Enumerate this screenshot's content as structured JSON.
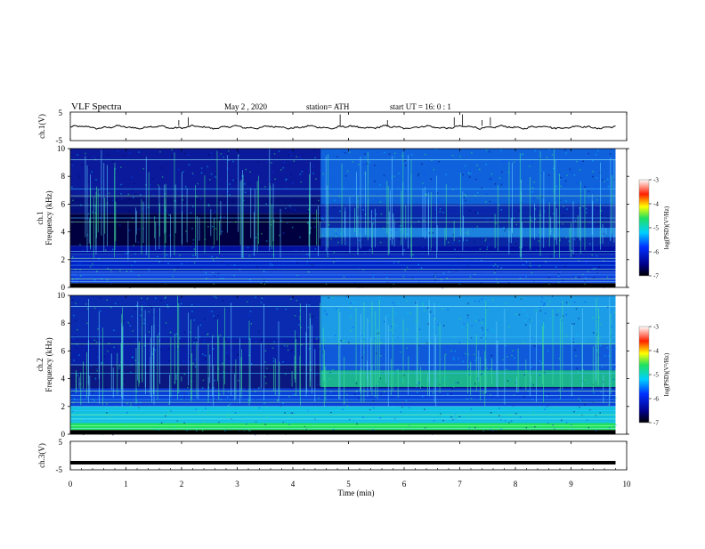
{
  "header": {
    "title": "VLF  Spectra",
    "date": "May 2  , 2020",
    "station": "station= ATH",
    "start_ut": "start  UT  =    16: 0   : 1"
  },
  "chart_data": [
    {
      "id": "ch1",
      "type": "line",
      "ylabel": "ch.1(V)",
      "ylim": [
        -5,
        5
      ],
      "ytick_labels": [
        "5",
        "-5"
      ],
      "xlim": [
        0,
        10
      ],
      "description_free": true,
      "baseline": -0.3,
      "color": "#000000"
    },
    {
      "id": "spec1",
      "type": "heatmap",
      "ylabel_line1": "ch.1",
      "ylabel_line2": "Frequency  (kHz)",
      "ylim": [
        0,
        10
      ],
      "ytick_labels": [
        "0",
        "2",
        "4",
        "6",
        "8",
        "10"
      ],
      "xlim": [
        0,
        10
      ],
      "data_end_min": 9.8,
      "change_min": 4.5,
      "colorbar": {
        "label": "log(PSD)(V²/Hz)",
        "range": [
          -7,
          -3
        ],
        "tick_labels": [
          "-3",
          "-4",
          "-5",
          "-6",
          "-7"
        ]
      }
    },
    {
      "id": "spec2",
      "type": "heatmap",
      "ylabel_line1": "ch.2",
      "ylabel_line2": "Frequency  (kHz)",
      "ylim": [
        0,
        10
      ],
      "ytick_labels": [
        "0",
        "2",
        "4",
        "6",
        "8",
        "10"
      ],
      "xlim": [
        0,
        10
      ],
      "data_end_min": 9.8,
      "change_min": 4.5,
      "colorbar": {
        "label": "log(PSD)(V²/Hz)",
        "range": [
          -7,
          -3
        ],
        "tick_labels": [
          "-3",
          "-4",
          "-5",
          "-6",
          "-7"
        ]
      }
    },
    {
      "id": "ch3",
      "type": "line",
      "ylabel": "ch.3(V)",
      "ylim": [
        -5,
        5
      ],
      "ytick_labels": [
        "5",
        "-5"
      ],
      "xlim": [
        0,
        10
      ],
      "baseline": -2.5,
      "color": "#000000"
    }
  ],
  "xaxis": {
    "label": "Time  (min)",
    "tick_labels": [
      "0",
      "1",
      "2",
      "3",
      "4",
      "5",
      "6",
      "7",
      "8",
      "9",
      "10"
    ]
  },
  "colors": {
    "deep": "#000060",
    "blue": "#0000e0",
    "cyan": "#00c8ff",
    "green": "#30e070"
  }
}
